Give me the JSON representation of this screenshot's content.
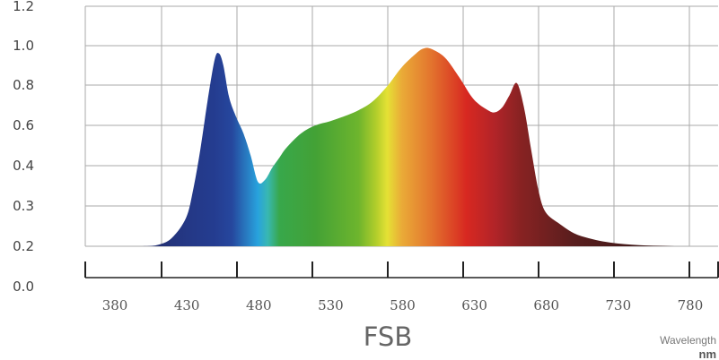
{
  "chart_data": {
    "type": "area",
    "title": "FSB",
    "xlabel": "Wavelength",
    "xunit": "nm",
    "ylabel": "",
    "x_ticks": [
      "380",
      "430",
      "480",
      "530",
      "580",
      "630",
      "680",
      "730",
      "780"
    ],
    "y_ticks": [
      "0.0",
      "0.2",
      "0.3",
      "0.4",
      "0.6",
      "0.8",
      "1.0",
      "1.2"
    ],
    "xlim": [
      360,
      800
    ],
    "grid": true,
    "legend": "none",
    "fill": "visible-spectrum gradient by wavelength",
    "series": [
      {
        "x": [
          400,
          410,
          420,
          430,
          435,
          440,
          445,
          450,
          453,
          456,
          460,
          465,
          470,
          475,
          480,
          485,
          490,
          495,
          500,
          510,
          520,
          530,
          540,
          550,
          560,
          570,
          580,
          590,
          595,
          600,
          610,
          620,
          630,
          640,
          645,
          650,
          655,
          660,
          665,
          670,
          675,
          680,
          690,
          700,
          710,
          720,
          730,
          740,
          750,
          760,
          770,
          780,
          785
        ],
        "y": [
          0.2,
          0.203,
          0.22,
          0.27,
          0.34,
          0.48,
          0.72,
          0.93,
          0.96,
          0.9,
          0.74,
          0.64,
          0.56,
          0.45,
          0.36,
          0.365,
          0.395,
          0.44,
          0.49,
          0.56,
          0.6,
          0.62,
          0.645,
          0.675,
          0.72,
          0.795,
          0.89,
          0.96,
          0.985,
          0.985,
          0.94,
          0.84,
          0.73,
          0.675,
          0.665,
          0.69,
          0.75,
          0.81,
          0.69,
          0.48,
          0.34,
          0.285,
          0.255,
          0.232,
          0.22,
          0.212,
          0.207,
          0.204,
          0.202,
          0.201,
          0.2,
          0.2,
          0.2
        ]
      }
    ]
  }
}
